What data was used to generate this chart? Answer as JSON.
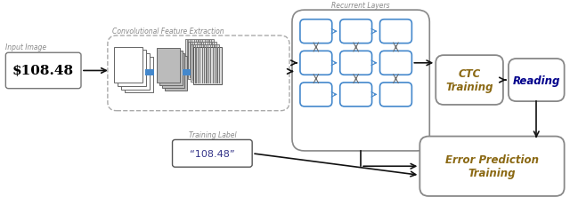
{
  "bg_color": "#ffffff",
  "input_image_label": "Input Image",
  "input_image_text": "$108.48",
  "conv_label": "Convolutional Feature Extraction",
  "recurrent_label": "Recurrent Layers",
  "ctc_text": "CTC\nTraining",
  "reading_text": "Reading",
  "training_label": "Training Label",
  "training_text": "“108.48”",
  "error_text": "Error Prediction\nTraining",
  "box_edge_color": "#909090",
  "blue_box_edge": "#4488cc",
  "blue_connector_color": "#4488cc",
  "ctc_text_color": "#8B6914",
  "error_text_color": "#8B6914",
  "reading_text_color": "#00008B",
  "input_text_color": "#000000",
  "label_color": "#888888",
  "arrow_color": "#333333",
  "dark_arrow_color": "#111111"
}
